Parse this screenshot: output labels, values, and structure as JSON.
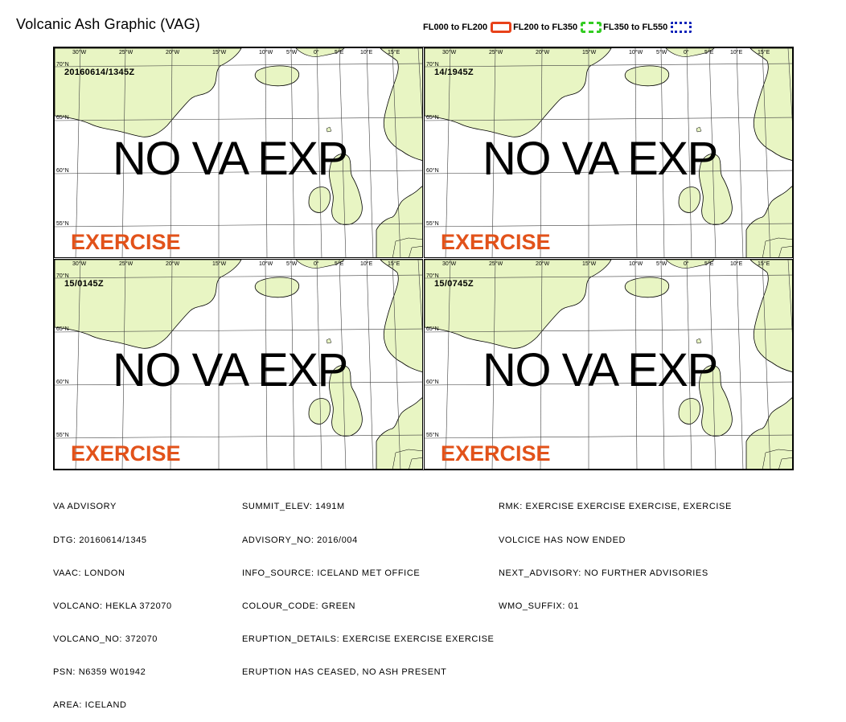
{
  "title": "Volcanic Ash Graphic (VAG)",
  "legend": [
    {
      "label": "FL000 to FL200",
      "color": "#e8421a",
      "style": "solid",
      "icon": "red-box-icon"
    },
    {
      "label": "FL200 to FL350",
      "color": "#33cc22",
      "style": "dashed",
      "icon": "green-box-icon"
    },
    {
      "label": "FL350 to FL550",
      "color": "#0a22b8",
      "style": "dotted",
      "icon": "blue-box-icon"
    }
  ],
  "map_style": {
    "land_color": "#e8f5c3",
    "sea_color": "#ffffff",
    "grid_color": "#404040",
    "exercise_color": "#e2521a"
  },
  "axis_labels": {
    "longitudes": [
      "30°W",
      "25°W",
      "20°W",
      "15°W",
      "10°W",
      "5°W",
      "0°",
      "5°E",
      "10°E",
      "15°E"
    ],
    "latitudes": [
      "70°N",
      "65°N",
      "60°N",
      "55°N"
    ]
  },
  "panels": [
    {
      "time": "20160614/1345Z",
      "message": "NO VA EXP",
      "watermark": "EXERCISE"
    },
    {
      "time": "14/1945Z",
      "message": "NO VA EXP",
      "watermark": "EXERCISE"
    },
    {
      "time": "15/0145Z",
      "message": "NO VA EXP",
      "watermark": "EXERCISE"
    },
    {
      "time": "15/0745Z",
      "message": "NO VA EXP",
      "watermark": "EXERCISE"
    }
  ],
  "advisory": {
    "col1": [
      "VA ADVISORY",
      "DTG: 20160614/1345",
      "VAAC: LONDON",
      "VOLCANO: HEKLA 372070",
      "VOLCANO_NO: 372070",
      "PSN: N6359 W01942",
      "AREA: ICELAND"
    ],
    "col2": [
      "SUMMIT_ELEV: 1491M",
      "ADVISORY_NO: 2016/004",
      "INFO_SOURCE: ICELAND MET OFFICE",
      "COLOUR_CODE: GREEN",
      "ERUPTION_DETAILS: EXERCISE EXERCISE EXERCISE",
      "ERUPTION HAS CEASED, NO ASH PRESENT"
    ],
    "col3": [
      "RMK: EXERCISE EXERCISE EXERCISE, EXERCISE",
      "VOLCICE HAS NOW ENDED",
      "NEXT_ADVISORY: NO FURTHER ADVISORIES",
      "WMO_SUFFIX: 01"
    ]
  }
}
